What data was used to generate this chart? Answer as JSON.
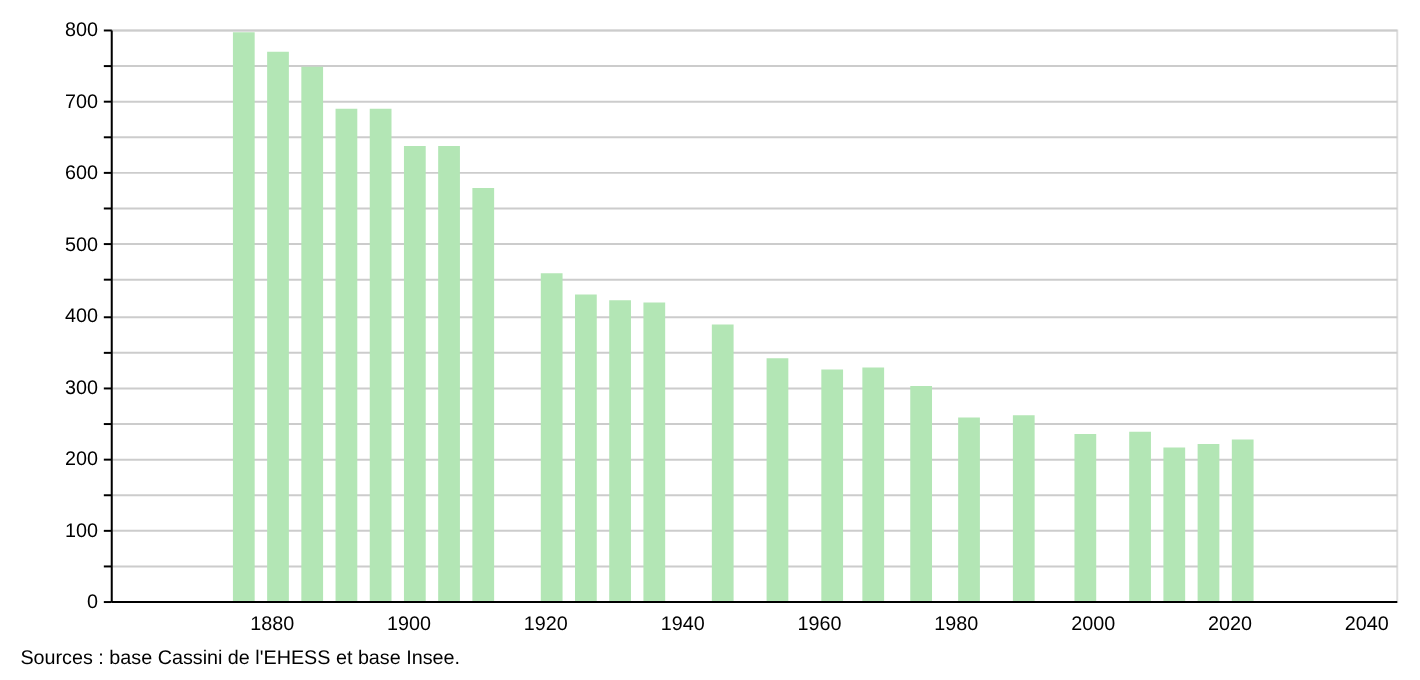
{
  "chart_data": {
    "type": "bar",
    "x": [
      1876,
      1881,
      1886,
      1891,
      1896,
      1901,
      1906,
      1911,
      1921,
      1926,
      1931,
      1936,
      1946,
      1954,
      1962,
      1968,
      1975,
      1982,
      1990,
      1999,
      2007,
      2012,
      2017,
      2022
    ],
    "series": [
      {
        "color": "#b3e6b5",
        "values": [
          796,
          769,
          748,
          689,
          689,
          637,
          637,
          578,
          459,
          429,
          421,
          418,
          387,
          340,
          324,
          327,
          301,
          257,
          260,
          234,
          237,
          215,
          220,
          226
        ]
      }
    ],
    "xlim": [
      1858,
      2043
    ],
    "xticks": [
      1880,
      1900,
      1920,
      1940,
      1960,
      1980,
      2000,
      2020,
      2040
    ],
    "ylim": [
      0,
      800
    ],
    "yticks": [
      0,
      {
        "value": 50,
        "label": null
      },
      100,
      {
        "value": 150,
        "label": null
      },
      200,
      {
        "value": 250,
        "label": null
      },
      300,
      {
        "value": 350,
        "label": null
      },
      400,
      {
        "value": 450,
        "label": null
      },
      500,
      {
        "value": 550,
        "label": null
      },
      600,
      {
        "value": 650,
        "label": null
      },
      700,
      {
        "value": 750,
        "label": null
      },
      800
    ],
    "grid": "y",
    "annotations": [
      "Sources : base Cassini de l'EHESS et base Insee."
    ]
  }
}
